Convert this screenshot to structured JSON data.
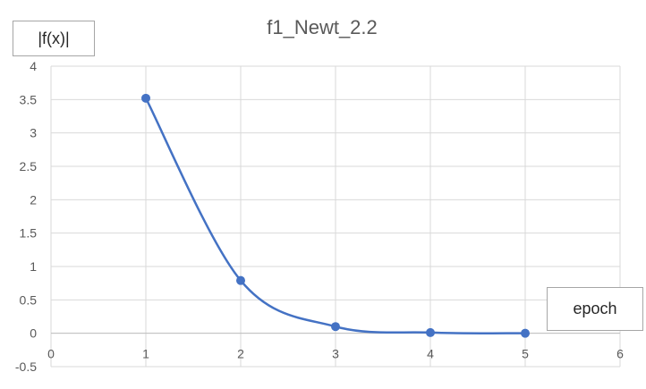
{
  "chart_data": {
    "type": "line",
    "title": "f1_Newt_2.2",
    "xlabel": "epoch",
    "ylabel": "|f(x)|",
    "x": [
      1,
      2,
      3,
      4,
      5
    ],
    "series": [
      {
        "values": [
          3.52,
          0.79,
          0.1,
          0.01,
          0.0
        ]
      }
    ],
    "xlim": [
      0,
      6
    ],
    "ylim": [
      -0.5,
      4
    ],
    "x_ticks": [
      "0",
      "1",
      "2",
      "3",
      "4",
      "5",
      "6"
    ],
    "y_ticks": [
      "-0.5",
      "0",
      "0.5",
      "1",
      "1.5",
      "2",
      "2.5",
      "3",
      "3.5",
      "4"
    ],
    "smooth": true,
    "markers": true,
    "grid": true,
    "series_color": "#4472c4",
    "grid_color": "#d9d9d9"
  }
}
